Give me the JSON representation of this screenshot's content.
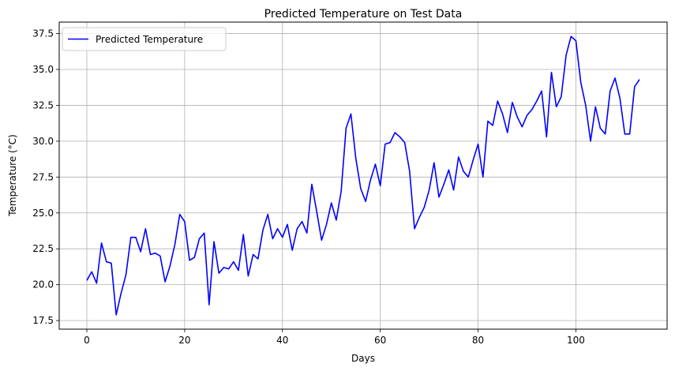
{
  "chart_data": {
    "type": "line",
    "title": "Predicted Temperature on Test Data",
    "xlabel": "Days",
    "ylabel": "Temperature (°C)",
    "xlim": [
      -5.65,
      118.65
    ],
    "ylim": [
      16.9,
      38.3
    ],
    "xticks": [
      0,
      20,
      40,
      60,
      80,
      100
    ],
    "xtick_labels": [
      "0",
      "20",
      "40",
      "60",
      "80",
      "100"
    ],
    "yticks": [
      17.5,
      20.0,
      22.5,
      25.0,
      27.5,
      30.0,
      32.5,
      35.0,
      37.5
    ],
    "ytick_labels": [
      "17.5",
      "20.0",
      "22.5",
      "25.0",
      "27.5",
      "30.0",
      "32.5",
      "35.0",
      "37.5"
    ],
    "grid": true,
    "legend_position": "top-left",
    "series": [
      {
        "name": "Predicted Temperature",
        "color": "#0000ff",
        "x": [
          0,
          1,
          2,
          3,
          4,
          5,
          6,
          7,
          8,
          9,
          10,
          11,
          12,
          13,
          14,
          15,
          16,
          17,
          18,
          19,
          20,
          21,
          22,
          23,
          24,
          25,
          26,
          27,
          28,
          29,
          30,
          31,
          32,
          33,
          34,
          35,
          36,
          37,
          38,
          39,
          40,
          41,
          42,
          43,
          44,
          45,
          46,
          47,
          48,
          49,
          50,
          51,
          52,
          53,
          54,
          55,
          56,
          57,
          58,
          59,
          60,
          61,
          62,
          63,
          64,
          65,
          66,
          67,
          68,
          69,
          70,
          71,
          72,
          73,
          74,
          75,
          76,
          77,
          78,
          79,
          80,
          81,
          82,
          83,
          84,
          85,
          86,
          87,
          88,
          89,
          90,
          91,
          92,
          93,
          94,
          95,
          96,
          97,
          98,
          99,
          100,
          101,
          102,
          103,
          104,
          105,
          106,
          107,
          108,
          109,
          110,
          111,
          112,
          113
        ],
        "values": [
          20.3,
          20.9,
          20.1,
          22.9,
          21.6,
          21.5,
          17.9,
          19.4,
          20.7,
          23.3,
          23.3,
          22.3,
          23.9,
          22.1,
          22.2,
          22.0,
          20.2,
          21.3,
          22.8,
          24.9,
          24.4,
          21.7,
          21.9,
          23.2,
          23.6,
          18.6,
          23.0,
          20.8,
          21.2,
          21.1,
          21.6,
          21.0,
          23.5,
          20.6,
          22.1,
          21.8,
          23.8,
          24.9,
          23.2,
          23.9,
          23.3,
          24.2,
          22.4,
          23.9,
          24.4,
          23.6,
          27.0,
          25.1,
          23.1,
          24.2,
          25.7,
          24.5,
          26.5,
          30.9,
          31.9,
          28.8,
          26.7,
          25.8,
          27.3,
          28.4,
          26.9,
          29.8,
          29.9,
          30.6,
          30.3,
          29.9,
          27.9,
          23.9,
          24.7,
          25.4,
          26.6,
          28.5,
          26.1,
          27.0,
          28.0,
          26.6,
          28.9,
          27.9,
          27.5,
          28.7,
          29.8,
          27.5,
          31.4,
          31.1,
          32.8,
          31.9,
          30.6,
          32.7,
          31.7,
          31.0,
          31.8,
          32.2,
          32.8,
          33.5,
          30.3,
          34.8,
          32.4,
          33.1,
          36.0,
          37.3,
          37.0,
          34.1,
          32.5,
          30.0,
          32.4,
          30.9,
          30.5,
          33.5,
          34.4,
          33.0,
          30.5,
          30.5,
          33.8,
          34.3
        ]
      }
    ]
  }
}
